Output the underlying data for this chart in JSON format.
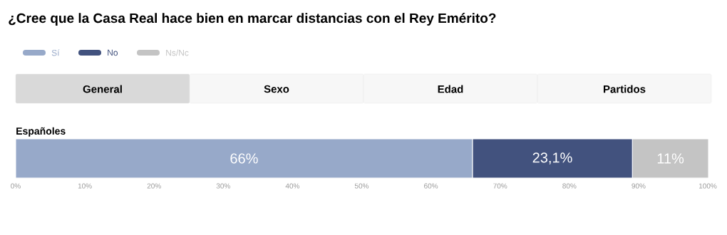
{
  "chart_data": {
    "type": "bar",
    "orientation": "horizontal",
    "stacked": true,
    "title": "¿Cree que la Casa Real hace bien en marcar distancias con el Rey Emérito?",
    "annotations": [
      "General",
      "Sexo",
      "Edad",
      "Partidos"
    ],
    "categories": [
      "Españoles"
    ],
    "series": [
      {
        "name": "Sí",
        "color": "#97a9c9",
        "values": [
          66
        ],
        "value_labels": [
          "66%"
        ]
      },
      {
        "name": "No",
        "color": "#42527e",
        "values": [
          23.1
        ],
        "value_labels": [
          "23,1%"
        ]
      },
      {
        "name": "Ns/Nc",
        "color": "#c4c4c4",
        "values": [
          11
        ],
        "value_labels": [
          "11%"
        ]
      }
    ],
    "xlim": [
      0,
      100
    ],
    "xticks": [
      {
        "value": 0,
        "label": "0%"
      },
      {
        "value": 10,
        "label": "10%"
      },
      {
        "value": 20,
        "label": "20%"
      },
      {
        "value": 30,
        "label": "30%"
      },
      {
        "value": 40,
        "label": "40%"
      },
      {
        "value": 50,
        "label": "50%"
      },
      {
        "value": 60,
        "label": "60%"
      },
      {
        "value": 70,
        "label": "70%"
      },
      {
        "value": 80,
        "label": "80%"
      },
      {
        "value": 90,
        "label": "90%"
      },
      {
        "value": 100,
        "label": "100%"
      }
    ],
    "legend": "top left"
  }
}
